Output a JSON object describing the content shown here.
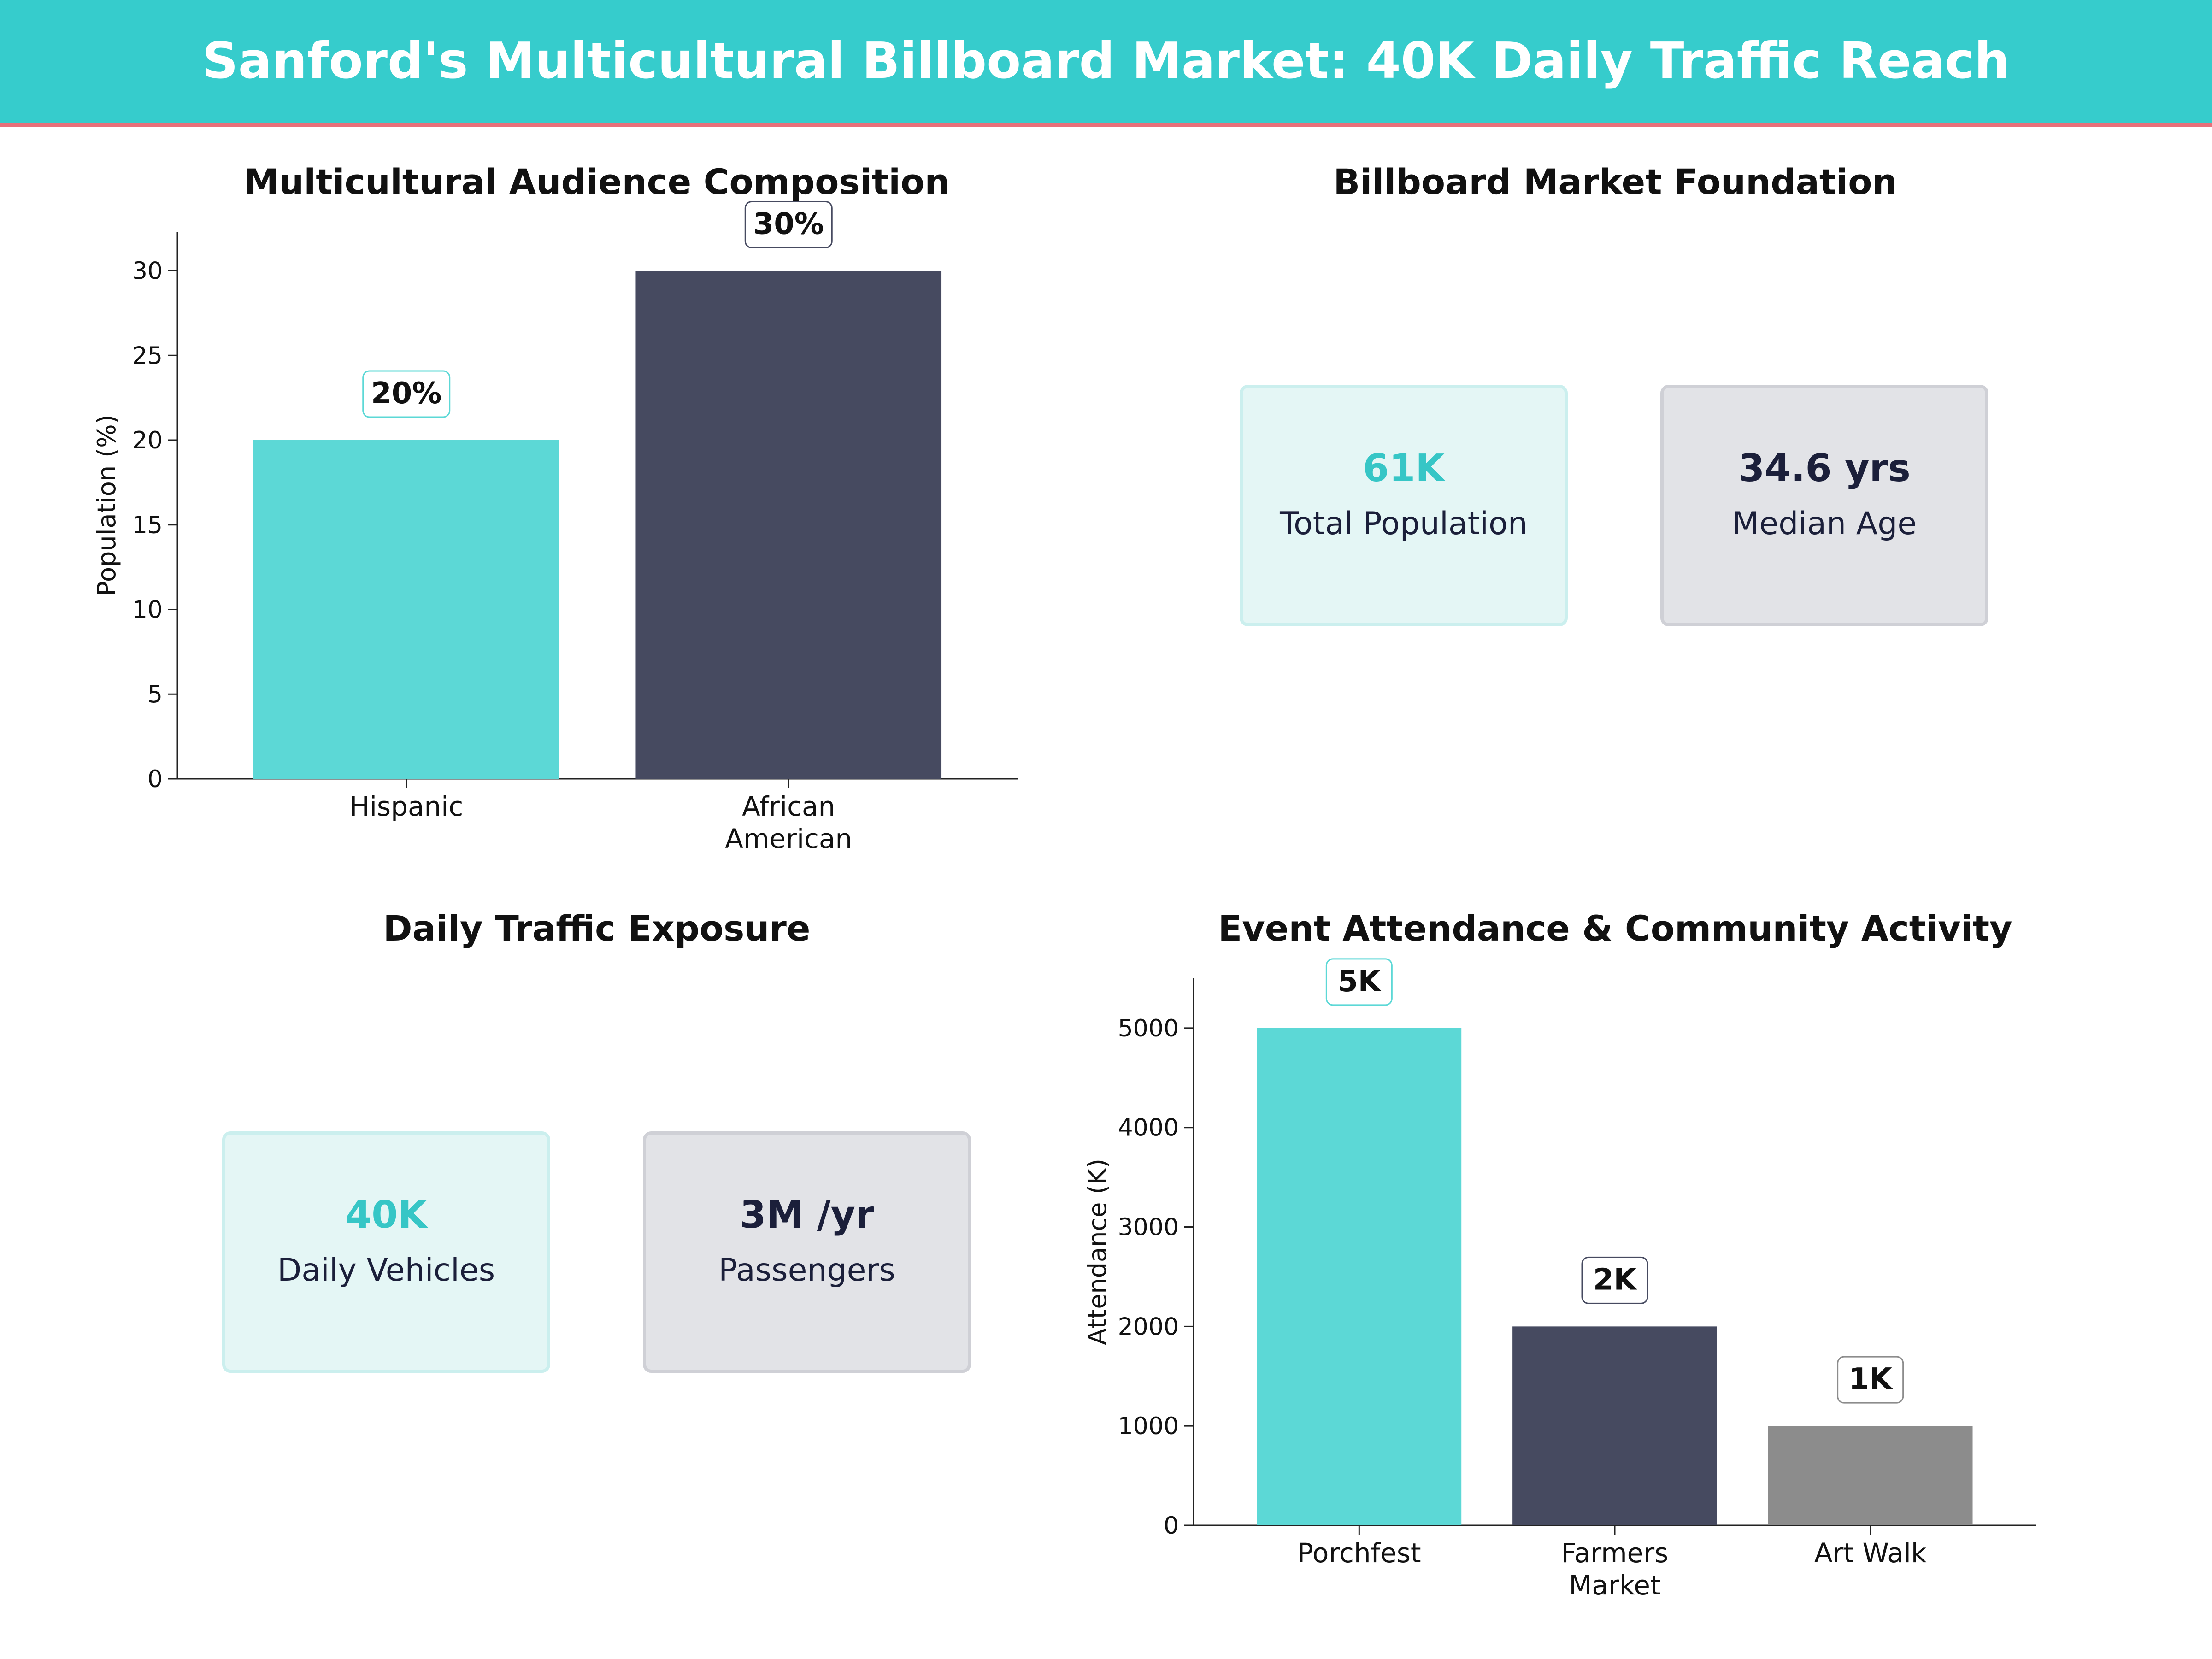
{
  "header": {
    "title": "Sanford's Multicultural Billboard Market: 40K Daily Traffic Reach"
  },
  "colors": {
    "teal": "#5CD8D6",
    "navy": "#464A60",
    "gray": "#8C8C8C",
    "header": "#36CCCC",
    "accent_line": "#E8707A"
  },
  "panels": {
    "audience": {
      "title": "Multicultural Audience Composition"
    },
    "foundation": {
      "title": "Billboard Market Foundation",
      "cards": [
        {
          "value": "61K",
          "label": "Total Population"
        },
        {
          "value": "34.6  yrs",
          "label": "Median Age"
        }
      ]
    },
    "traffic": {
      "title": "Daily Traffic Exposure",
      "cards": [
        {
          "value": "40K",
          "label": "Daily Vehicles"
        },
        {
          "value": "3M /yr",
          "label": "Passengers"
        }
      ]
    },
    "events": {
      "title": "Event Attendance & Community Activity"
    }
  },
  "chart_data": [
    {
      "type": "bar",
      "title": "Multicultural Audience Composition",
      "categories": [
        [
          "Hispanic"
        ],
        [
          "African",
          "American"
        ]
      ],
      "values": [
        20,
        30
      ],
      "labels": [
        "20%",
        "30%"
      ],
      "ylabel": "Population (%)",
      "ylim": [
        0,
        32.3
      ],
      "yticks": [
        0,
        5,
        10,
        15,
        20,
        25,
        30
      ]
    },
    {
      "type": "bar",
      "title": "Event Attendance & Community Activity",
      "categories": [
        [
          "Porchfest"
        ],
        [
          "Farmers",
          "Market"
        ],
        [
          "Art Walk"
        ]
      ],
      "values": [
        5000,
        2000,
        1000
      ],
      "labels": [
        "5K",
        "2K",
        "1K"
      ],
      "ylabel": "Attendance (K)",
      "ylim": [
        0,
        5500
      ],
      "yticks": [
        0,
        1000,
        2000,
        3000,
        4000,
        5000
      ]
    }
  ]
}
